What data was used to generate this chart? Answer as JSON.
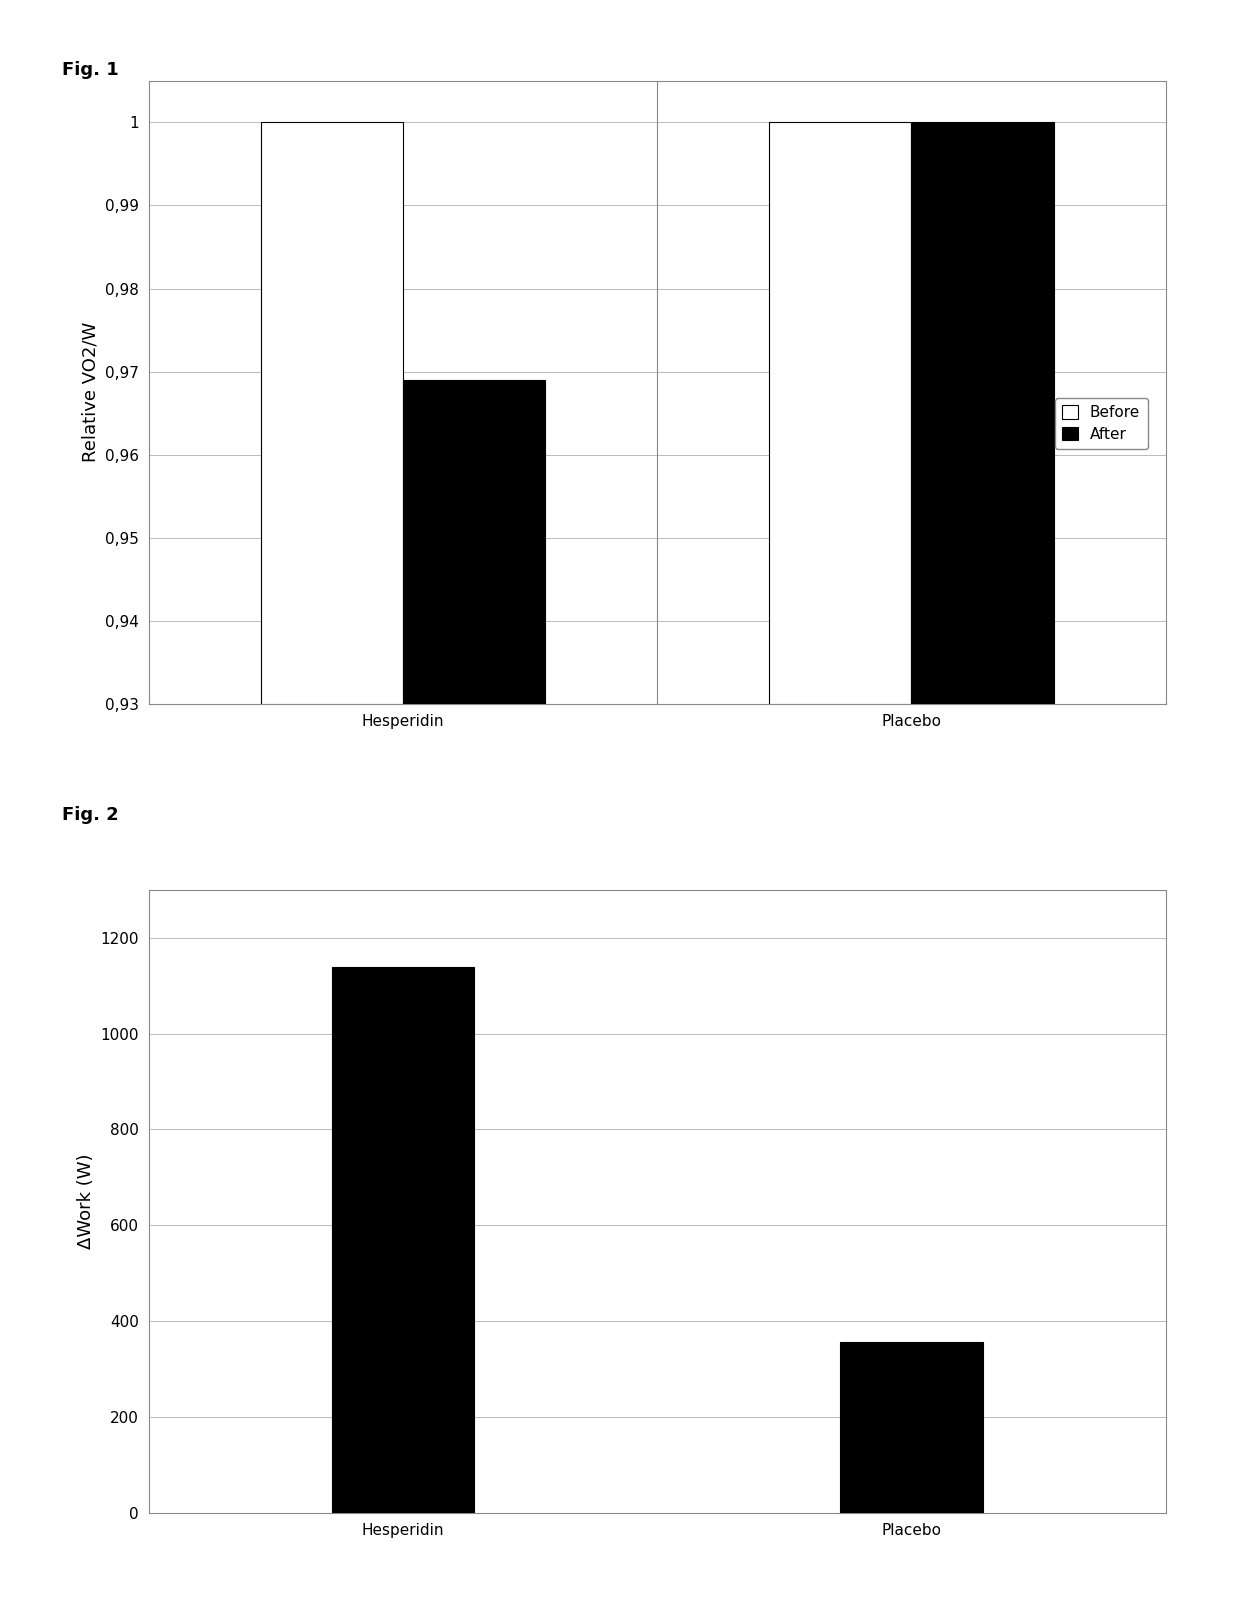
{
  "fig1": {
    "title": "Fig. 1",
    "ylabel": "Relative VO2/W",
    "categories": [
      "Hesperidin",
      "Placebo"
    ],
    "before_values": [
      1.0,
      1.0
    ],
    "after_values": [
      0.969,
      1.0
    ],
    "before_color": "#ffffff",
    "after_color": "#000000",
    "bar_edge_color": "#000000",
    "ylim_min": 0.93,
    "ylim_max": 1.005,
    "yticks": [
      0.93,
      0.94,
      0.95,
      0.96,
      0.97,
      0.98,
      0.99,
      1.0
    ],
    "ytick_labels": [
      "0,93",
      "0,94",
      "0,95",
      "0,96",
      "0,97",
      "0,98",
      "0,99",
      "1"
    ],
    "legend_labels": [
      "Before",
      "After"
    ],
    "grid_color": "#b0b0b0",
    "bar_width": 0.28
  },
  "fig2": {
    "title": "Fig. 2",
    "ylabel": "ΔWork (W)",
    "categories": [
      "Hesperidin",
      "Placebo"
    ],
    "values": [
      1140,
      357
    ],
    "bar_color": "#000000",
    "bar_edge_color": "#000000",
    "ylim": [
      0,
      1300
    ],
    "yticks": [
      0,
      200,
      400,
      600,
      800,
      1000,
      1200
    ],
    "ytick_labels": [
      "0",
      "200",
      "400",
      "600",
      "800",
      "1000",
      "1200"
    ],
    "grid_color": "#b0b0b0",
    "bar_width": 0.28
  },
  "background_color": "#ffffff",
  "outer_bg": "#ffffff",
  "label_fontsize": 13,
  "tick_fontsize": 11,
  "title_fontsize": 13
}
